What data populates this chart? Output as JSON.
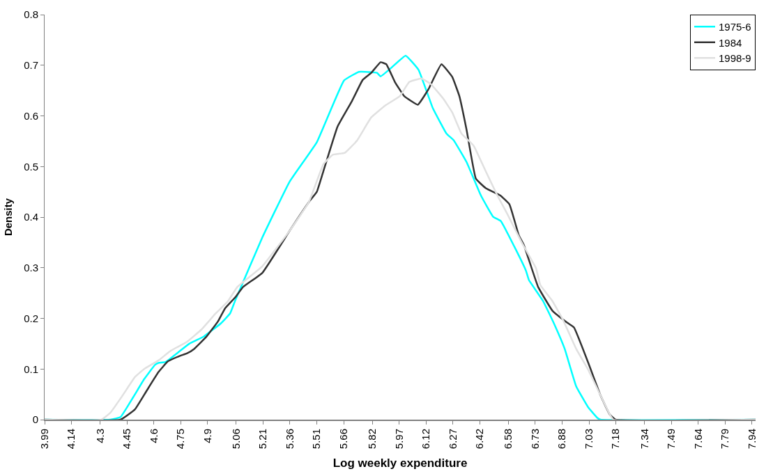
{
  "chart_data": {
    "type": "line",
    "xlabel": "Log weekly expenditure",
    "ylabel": "Density",
    "xlim": [
      3.99,
      7.96
    ],
    "ylim": [
      0,
      0.8
    ],
    "xticks": [
      3.99,
      4.14,
      4.3,
      4.45,
      4.6,
      4.75,
      4.9,
      5.06,
      5.21,
      5.36,
      5.51,
      5.66,
      5.82,
      5.97,
      6.12,
      6.27,
      6.42,
      6.58,
      6.73,
      6.88,
      7.03,
      7.18,
      7.34,
      7.49,
      7.64,
      7.79,
      7.94
    ],
    "yticks": [
      0,
      0.1,
      0.2,
      0.3,
      0.4,
      0.5,
      0.6,
      0.7,
      0.8
    ],
    "grid": false,
    "legend": "top right",
    "marker": "none",
    "line_style": "solid",
    "series": [
      {
        "name": "1975-6",
        "color": "#00ffff",
        "x": [
          3.99,
          4.358,
          4.414,
          4.486,
          4.546,
          4.606,
          4.626,
          4.666,
          4.798,
          4.878,
          4.974,
          5.026,
          5.054,
          5.206,
          5.358,
          5.51,
          5.662,
          5.746,
          5.846,
          5.866,
          5.926,
          6.006,
          6.078,
          6.158,
          6.234,
          6.274,
          6.346,
          6.426,
          6.494,
          6.538,
          6.614,
          6.678,
          6.694,
          6.774,
          6.838,
          6.894,
          6.958,
          7.026,
          7.078,
          7.094,
          7.96
        ],
        "values": [
          0,
          0,
          0.005,
          0.045,
          0.08,
          0.108,
          0.112,
          0.114,
          0.15,
          0.164,
          0.19,
          0.21,
          0.235,
          0.36,
          0.47,
          0.548,
          0.67,
          0.687,
          0.685,
          0.678,
          0.695,
          0.719,
          0.691,
          0.615,
          0.565,
          0.552,
          0.509,
          0.443,
          0.401,
          0.392,
          0.341,
          0.294,
          0.276,
          0.234,
          0.187,
          0.14,
          0.066,
          0.024,
          0.003,
          0,
          0
        ]
      },
      {
        "name": "1984",
        "color": "#333333",
        "x": [
          3.99,
          4.414,
          4.494,
          4.558,
          4.626,
          4.678,
          4.746,
          4.786,
          4.826,
          4.894,
          4.958,
          4.998,
          5.058,
          5.098,
          5.206,
          5.358,
          5.466,
          5.51,
          5.546,
          5.626,
          5.706,
          5.766,
          5.814,
          5.866,
          5.898,
          5.946,
          5.998,
          6.074,
          6.134,
          6.206,
          6.266,
          6.306,
          6.346,
          6.398,
          6.454,
          6.534,
          6.586,
          6.638,
          6.666,
          6.746,
          6.826,
          6.906,
          6.946,
          7.026,
          7.094,
          7.146,
          7.178,
          7.96
        ],
        "values": [
          0,
          0,
          0.02,
          0.056,
          0.094,
          0.115,
          0.126,
          0.131,
          0.14,
          0.164,
          0.194,
          0.22,
          0.243,
          0.262,
          0.29,
          0.373,
          0.43,
          0.45,
          0.49,
          0.579,
          0.629,
          0.671,
          0.685,
          0.706,
          0.702,
          0.667,
          0.639,
          0.622,
          0.653,
          0.702,
          0.677,
          0.639,
          0.573,
          0.476,
          0.457,
          0.443,
          0.425,
          0.364,
          0.345,
          0.262,
          0.215,
          0.192,
          0.182,
          0.112,
          0.048,
          0.01,
          0,
          0
        ]
      },
      {
        "name": "1998-9",
        "color": "#e0e0e0",
        "x": [
          3.99,
          4.306,
          4.358,
          4.426,
          4.494,
          4.546,
          4.626,
          4.694,
          4.786,
          4.866,
          4.946,
          5.014,
          5.066,
          5.206,
          5.358,
          5.466,
          5.546,
          5.598,
          5.666,
          5.734,
          5.814,
          5.894,
          5.974,
          6.026,
          6.094,
          6.146,
          6.214,
          6.266,
          6.318,
          6.386,
          6.454,
          6.518,
          6.574,
          6.654,
          6.734,
          6.758,
          6.826,
          6.886,
          6.958,
          7.026,
          7.094,
          7.146,
          7.166,
          7.96
        ],
        "values": [
          0,
          0,
          0.014,
          0.048,
          0.084,
          0.1,
          0.117,
          0.136,
          0.154,
          0.178,
          0.21,
          0.234,
          0.262,
          0.303,
          0.373,
          0.43,
          0.504,
          0.523,
          0.527,
          0.551,
          0.597,
          0.621,
          0.639,
          0.667,
          0.674,
          0.663,
          0.635,
          0.607,
          0.565,
          0.541,
          0.49,
          0.443,
          0.406,
          0.35,
          0.299,
          0.266,
          0.234,
          0.196,
          0.14,
          0.098,
          0.048,
          0.01,
          0,
          0
        ]
      }
    ]
  }
}
